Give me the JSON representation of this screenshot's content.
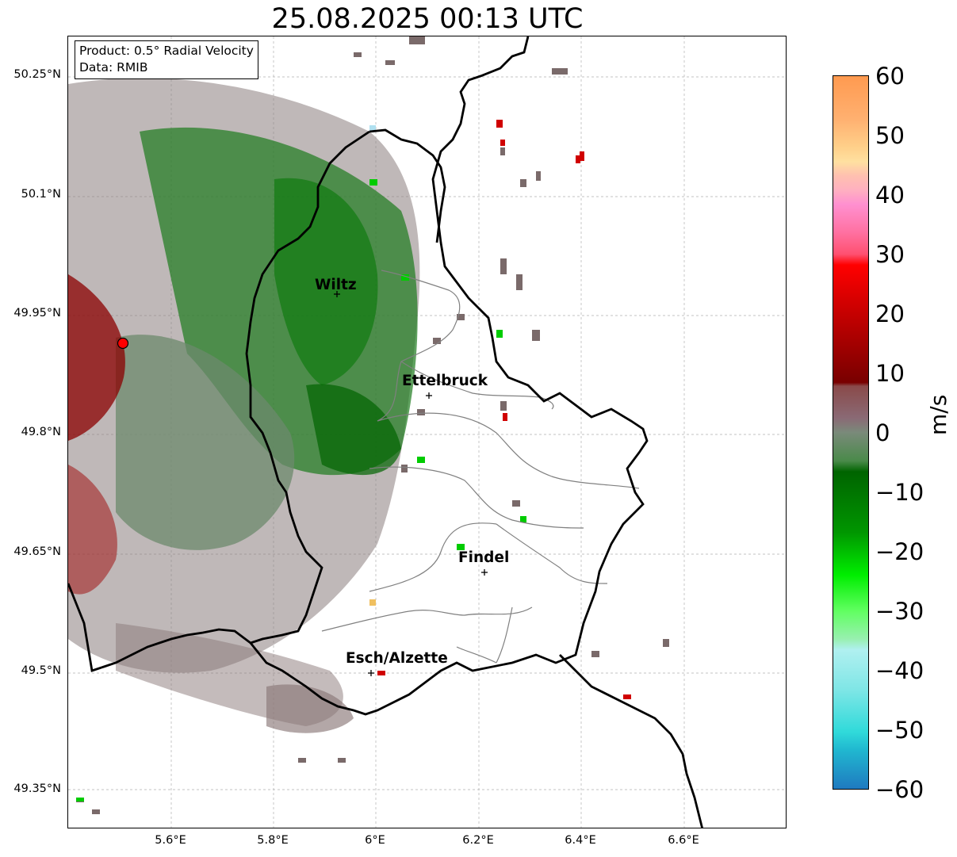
{
  "title": "25.08.2025 00:13 UTC",
  "info": {
    "product": "Product: 0.5° Radial Velocity",
    "source": "Data: RMIB"
  },
  "lat_labels": [
    "50.25°N",
    "50.1°N",
    "49.95°N",
    "49.8°N",
    "49.65°N",
    "49.5°N",
    "49.35°N"
  ],
  "lon_labels": [
    "5.6°E",
    "5.8°E",
    "6°E",
    "6.2°E",
    "6.4°E",
    "6.6°E"
  ],
  "cities": [
    "Wiltz",
    "Ettelbruck",
    "Findel",
    "Esch/Alzette"
  ],
  "colorbar": {
    "label": "m/s",
    "ticks": [
      "60",
      "50",
      "40",
      "30",
      "20",
      "10",
      "0",
      "−10",
      "−20",
      "−30",
      "−40",
      "−50",
      "−60"
    ],
    "range": [
      -60,
      60
    ]
  },
  "colors": {
    "border_country": "#000000",
    "border_canton": "#808080",
    "radar_site": "#ff0000"
  }
}
